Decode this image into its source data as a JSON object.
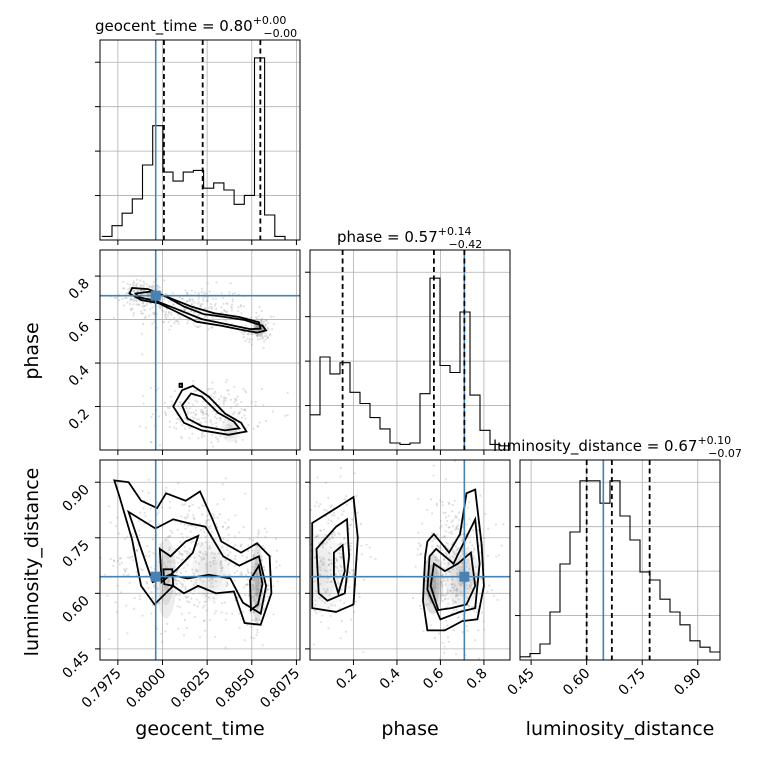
{
  "chart_data": {
    "type": "corner",
    "parameters": [
      {
        "name": "geocent_time",
        "title_label": "geocent_time = 0.80",
        "title_plus": "+0.00",
        "title_minus": "−0.00",
        "range": [
          0.7965,
          0.8077
        ],
        "ticks": [
          0.7975,
          0.8,
          0.8025,
          0.805,
          0.8075
        ],
        "tick_labels": [
          "0.7975",
          "0.8000",
          "0.8025",
          "0.8050",
          "0.8075"
        ],
        "truth": 0.79962,
        "quantiles": [
          0.80008,
          0.80225,
          0.80548
        ],
        "hist_max": 1.12,
        "hist": {
          "edges": [
            0.7966,
            0.79717,
            0.79774,
            0.79831,
            0.79888,
            0.79945,
            0.80002,
            0.80059,
            0.80116,
            0.80173,
            0.8023,
            0.80287,
            0.80344,
            0.80401,
            0.80458,
            0.80515,
            0.80572,
            0.80629,
            0.80686,
            0.80743
          ],
          "counts": [
            0.02,
            0.08,
            0.15,
            0.23,
            0.42,
            0.64,
            0.38,
            0.33,
            0.38,
            0.39,
            0.29,
            0.32,
            0.28,
            0.2,
            0.25,
            1.02,
            0.14,
            0.02,
            0.0
          ]
        }
      },
      {
        "name": "phase",
        "title_label": "phase = 0.57",
        "title_plus": "+0.14",
        "title_minus": "−0.42",
        "range": [
          0.0,
          0.92
        ],
        "ticks": [
          0.2,
          0.4,
          0.6,
          0.8
        ],
        "tick_labels": [
          "0.2",
          "0.4",
          "0.6",
          "0.8"
        ],
        "truth": 0.71,
        "quantiles": [
          0.15,
          0.57,
          0.71
        ],
        "hist_max": 1.42,
        "hist": {
          "edges": [
            0.0,
            0.046,
            0.092,
            0.138,
            0.184,
            0.23,
            0.276,
            0.322,
            0.368,
            0.414,
            0.46,
            0.506,
            0.552,
            0.598,
            0.644,
            0.69,
            0.736,
            0.782,
            0.828,
            0.874,
            0.92
          ],
          "counts": [
            0.25,
            0.66,
            0.54,
            0.62,
            0.41,
            0.33,
            0.23,
            0.15,
            0.05,
            0.04,
            0.05,
            0.4,
            1.22,
            0.6,
            0.55,
            0.98,
            0.39,
            0.14,
            0.04,
            0.03
          ]
        }
      },
      {
        "name": "luminosity_distance",
        "title_label": "luminosity_distance = 0.67",
        "title_plus": "+0.10",
        "title_minus": "−0.07",
        "range": [
          0.42,
          0.96
        ],
        "ticks": [
          0.45,
          0.6,
          0.75,
          0.9
        ],
        "tick_labels": [
          "0.45",
          "0.60",
          "0.75",
          "0.90"
        ],
        "truth": 0.645,
        "quantiles": [
          0.6,
          0.668,
          0.77
        ],
        "hist_max": 1.25,
        "hist": {
          "edges": [
            0.42,
            0.447,
            0.474,
            0.501,
            0.528,
            0.555,
            0.582,
            0.609,
            0.636,
            0.663,
            0.69,
            0.717,
            0.744,
            0.771,
            0.798,
            0.825,
            0.852,
            0.879,
            0.906,
            0.933,
            0.96
          ],
          "counts": [
            0.02,
            0.04,
            0.1,
            0.3,
            0.6,
            0.8,
            1.12,
            1.12,
            0.98,
            1.12,
            0.9,
            0.75,
            0.55,
            0.5,
            0.38,
            0.3,
            0.22,
            0.12,
            0.08,
            0.05
          ]
        }
      }
    ],
    "contours": {
      "geocent_time__phase": [
        [
          [
            0.79815,
            0.72
          ],
          [
            0.7983,
            0.745
          ],
          [
            0.7992,
            0.74
          ],
          [
            0.8002,
            0.705
          ],
          [
            0.8012,
            0.66
          ],
          [
            0.8023,
            0.625
          ],
          [
            0.8035,
            0.612
          ],
          [
            0.8046,
            0.598
          ],
          [
            0.8056,
            0.572
          ],
          [
            0.8058,
            0.55
          ],
          [
            0.8053,
            0.54
          ],
          [
            0.8044,
            0.553
          ],
          [
            0.8033,
            0.572
          ],
          [
            0.8019,
            0.59
          ],
          [
            0.8008,
            0.635
          ],
          [
            0.7998,
            0.675
          ],
          [
            0.7988,
            0.69
          ],
          [
            0.79815,
            0.72
          ]
        ],
        [
          [
            0.7985,
            0.72
          ],
          [
            0.7993,
            0.728
          ],
          [
            0.8003,
            0.703
          ],
          [
            0.8016,
            0.66
          ],
          [
            0.8029,
            0.629
          ],
          [
            0.8043,
            0.612
          ],
          [
            0.8054,
            0.588
          ],
          [
            0.8055,
            0.558
          ],
          [
            0.8049,
            0.556
          ],
          [
            0.8038,
            0.575
          ],
          [
            0.8022,
            0.602
          ],
          [
            0.8009,
            0.645
          ],
          [
            0.7996,
            0.687
          ],
          [
            0.7987,
            0.702
          ],
          [
            0.7985,
            0.72
          ]
        ],
        [
          [
            0.8006,
            0.2
          ],
          [
            0.8011,
            0.275
          ],
          [
            0.8017,
            0.295
          ],
          [
            0.8026,
            0.245
          ],
          [
            0.8035,
            0.168
          ],
          [
            0.8044,
            0.125
          ],
          [
            0.8047,
            0.085
          ],
          [
            0.8037,
            0.07
          ],
          [
            0.8022,
            0.09
          ],
          [
            0.8012,
            0.125
          ],
          [
            0.8006,
            0.2
          ]
        ],
        [
          [
            0.8011,
            0.205
          ],
          [
            0.8016,
            0.26
          ],
          [
            0.8022,
            0.245
          ],
          [
            0.8031,
            0.172
          ],
          [
            0.804,
            0.13
          ],
          [
            0.8043,
            0.1
          ],
          [
            0.8035,
            0.09
          ],
          [
            0.8022,
            0.11
          ],
          [
            0.8014,
            0.145
          ],
          [
            0.8011,
            0.205
          ]
        ],
        [
          [
            0.80095,
            0.305
          ],
          [
            0.8011,
            0.305
          ],
          [
            0.8011,
            0.29
          ],
          [
            0.80095,
            0.29
          ],
          [
            0.80095,
            0.305
          ]
        ]
      ],
      "geocent_time__luminosity_distance": [
        [
          [
            0.7973,
            0.905
          ],
          [
            0.7976,
            0.86
          ],
          [
            0.7983,
            0.745
          ],
          [
            0.7988,
            0.62
          ],
          [
            0.79955,
            0.57
          ],
          [
            0.8006,
            0.62
          ],
          [
            0.8012,
            0.6
          ],
          [
            0.802,
            0.62
          ],
          [
            0.803,
            0.6
          ],
          [
            0.804,
            0.605
          ],
          [
            0.8046,
            0.52
          ],
          [
            0.8055,
            0.515
          ],
          [
            0.8061,
            0.6
          ],
          [
            0.806,
            0.7
          ],
          [
            0.8053,
            0.735
          ],
          [
            0.8044,
            0.71
          ],
          [
            0.8033,
            0.74
          ],
          [
            0.8028,
            0.8
          ],
          [
            0.8021,
            0.875
          ],
          [
            0.8013,
            0.85
          ],
          [
            0.8002,
            0.87
          ],
          [
            0.7997,
            0.83
          ],
          [
            0.7988,
            0.85
          ],
          [
            0.7981,
            0.9
          ],
          [
            0.7973,
            0.905
          ]
        ],
        [
          [
            0.7981,
            0.82
          ],
          [
            0.7988,
            0.72
          ],
          [
            0.79945,
            0.63
          ],
          [
            0.8004,
            0.65
          ],
          [
            0.8014,
            0.64
          ],
          [
            0.8026,
            0.65
          ],
          [
            0.8038,
            0.64
          ],
          [
            0.8045,
            0.575
          ],
          [
            0.8055,
            0.545
          ],
          [
            0.8058,
            0.62
          ],
          [
            0.8054,
            0.7
          ],
          [
            0.8043,
            0.675
          ],
          [
            0.8034,
            0.7
          ],
          [
            0.8024,
            0.78
          ],
          [
            0.8014,
            0.79
          ],
          [
            0.8006,
            0.8
          ],
          [
            0.7996,
            0.775
          ],
          [
            0.7981,
            0.82
          ]
        ],
        [
          [
            0.79985,
            0.72
          ],
          [
            0.79995,
            0.63
          ],
          [
            0.8008,
            0.665
          ],
          [
            0.8017,
            0.71
          ],
          [
            0.802,
            0.755
          ],
          [
            0.8013,
            0.74
          ],
          [
            0.80045,
            0.7
          ],
          [
            0.79985,
            0.72
          ]
        ],
        [
          [
            0.80495,
            0.555
          ],
          [
            0.80535,
            0.57
          ],
          [
            0.8056,
            0.625
          ],
          [
            0.8054,
            0.675
          ],
          [
            0.8049,
            0.635
          ],
          [
            0.80495,
            0.555
          ]
        ],
        [
          [
            0.80005,
            0.665
          ],
          [
            0.80055,
            0.665
          ],
          [
            0.8006,
            0.62
          ],
          [
            0.8001,
            0.625
          ],
          [
            0.80005,
            0.665
          ]
        ]
      ],
      "phase__luminosity_distance": [
        [
          [
            0.01,
            0.79
          ],
          [
            0.12,
            0.83
          ],
          [
            0.2,
            0.86
          ],
          [
            0.22,
            0.75
          ],
          [
            0.2,
            0.57
          ],
          [
            0.12,
            0.55
          ],
          [
            0.01,
            0.56
          ],
          [
            0.01,
            0.79
          ]
        ],
        [
          [
            0.03,
            0.72
          ],
          [
            0.12,
            0.78
          ],
          [
            0.17,
            0.8
          ],
          [
            0.18,
            0.7
          ],
          [
            0.16,
            0.6
          ],
          [
            0.08,
            0.58
          ],
          [
            0.04,
            0.6
          ],
          [
            0.03,
            0.72
          ]
        ],
        [
          [
            0.11,
            0.71
          ],
          [
            0.15,
            0.73
          ],
          [
            0.16,
            0.66
          ],
          [
            0.13,
            0.6
          ],
          [
            0.11,
            0.64
          ],
          [
            0.11,
            0.71
          ]
        ],
        [
          [
            0.52,
            0.58
          ],
          [
            0.53,
            0.7
          ],
          [
            0.54,
            0.74
          ],
          [
            0.57,
            0.76
          ],
          [
            0.64,
            0.71
          ],
          [
            0.69,
            0.76
          ],
          [
            0.72,
            0.87
          ],
          [
            0.76,
            0.88
          ],
          [
            0.79,
            0.73
          ],
          [
            0.8,
            0.62
          ],
          [
            0.77,
            0.53
          ],
          [
            0.7,
            0.525
          ],
          [
            0.62,
            0.5
          ],
          [
            0.54,
            0.5
          ],
          [
            0.52,
            0.58
          ]
        ],
        [
          [
            0.54,
            0.61
          ],
          [
            0.55,
            0.7
          ],
          [
            0.58,
            0.72
          ],
          [
            0.66,
            0.68
          ],
          [
            0.71,
            0.74
          ],
          [
            0.76,
            0.8
          ],
          [
            0.78,
            0.68
          ],
          [
            0.76,
            0.56
          ],
          [
            0.69,
            0.55
          ],
          [
            0.6,
            0.53
          ],
          [
            0.54,
            0.61
          ]
        ],
        [
          [
            0.555,
            0.62
          ],
          [
            0.57,
            0.68
          ],
          [
            0.62,
            0.66
          ],
          [
            0.68,
            0.68
          ],
          [
            0.74,
            0.71
          ],
          [
            0.76,
            0.62
          ],
          [
            0.72,
            0.57
          ],
          [
            0.65,
            0.56
          ],
          [
            0.59,
            0.555
          ],
          [
            0.555,
            0.62
          ]
        ]
      ]
    },
    "density_blobs": {
      "geocent_time__phase": [
        {
          "cx": 0.8054,
          "cy": 0.56,
          "sx": 0.00012,
          "sy": 0.012,
          "w": 1.0
        },
        {
          "cx": 0.79955,
          "cy": 0.712,
          "sx": 0.00016,
          "sy": 0.012,
          "w": 0.9
        },
        {
          "cx": 0.8038,
          "cy": 0.09,
          "sx": 0.0002,
          "sy": 0.02,
          "w": 0.4
        }
      ],
      "geocent_time__luminosity_distance": [
        {
          "cx": 0.8053,
          "cy": 0.625,
          "sx": 0.00012,
          "sy": 0.04,
          "w": 0.9
        },
        {
          "cx": 0.8002,
          "cy": 0.64,
          "sx": 0.00022,
          "sy": 0.04,
          "w": 0.6
        },
        {
          "cx": 0.8027,
          "cy": 0.66,
          "sx": 0.0004,
          "sy": 0.03,
          "w": 0.3
        }
      ],
      "phase__luminosity_distance": [
        {
          "cx": 0.565,
          "cy": 0.625,
          "sx": 0.018,
          "sy": 0.03,
          "w": 1.0
        },
        {
          "cx": 0.7,
          "cy": 0.645,
          "sx": 0.03,
          "sy": 0.03,
          "w": 0.5
        },
        {
          "cx": 0.05,
          "cy": 0.655,
          "sx": 0.04,
          "sy": 0.04,
          "w": 0.25
        }
      ]
    },
    "sample_clusters": {
      "geocent_time__phase": [
        {
          "cx": 0.8015,
          "cy": 0.65,
          "sx": 0.0017,
          "sy": 0.05,
          "n": 260
        },
        {
          "cx": 0.8053,
          "cy": 0.555,
          "sx": 0.0004,
          "sy": 0.03,
          "n": 140
        },
        {
          "cx": 0.7988,
          "cy": 0.72,
          "sx": 0.0006,
          "sy": 0.03,
          "n": 130
        },
        {
          "cx": 0.8025,
          "cy": 0.17,
          "sx": 0.0015,
          "sy": 0.07,
          "n": 230
        }
      ],
      "geocent_time__luminosity_distance": [
        {
          "cx": 0.8015,
          "cy": 0.69,
          "sx": 0.0022,
          "sy": 0.09,
          "n": 520
        },
        {
          "cx": 0.8053,
          "cy": 0.62,
          "sx": 0.0004,
          "sy": 0.06,
          "n": 160
        }
      ],
      "phase__luminosity_distance": [
        {
          "cx": 0.1,
          "cy": 0.7,
          "sx": 0.07,
          "sy": 0.09,
          "n": 260
        },
        {
          "cx": 0.66,
          "cy": 0.67,
          "sx": 0.08,
          "sy": 0.1,
          "n": 420
        }
      ]
    },
    "legend": "none",
    "grid": true
  }
}
